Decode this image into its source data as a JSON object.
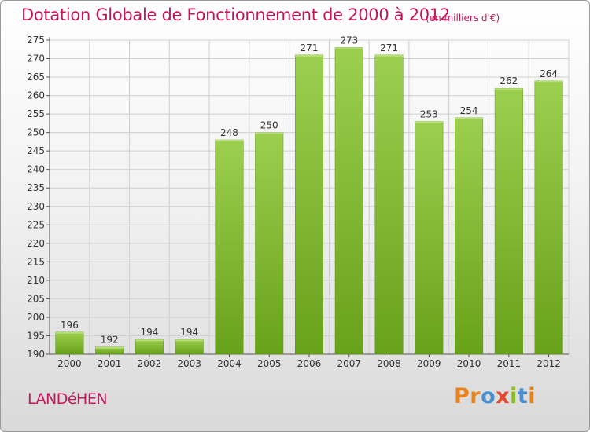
{
  "header": {
    "title": "Dotation Globale de Fonctionnement de 2000 à 2012",
    "subtitle": "(en milliers d'€)"
  },
  "footer": {
    "town": "LANDéHEN",
    "brand": "Proxiti"
  },
  "colors": {
    "title": "#c2185b",
    "bar_top": "#9ccf4f",
    "bar_bottom": "#68a11a",
    "brand_letters": [
      "#e8821e",
      "#e8821e",
      "#4a8fd0",
      "#e34a2f",
      "#8bbb22",
      "#4a8fd0",
      "#e8821e"
    ]
  },
  "chart_data": {
    "type": "bar",
    "categories": [
      "2000",
      "2001",
      "2002",
      "2003",
      "2004",
      "2005",
      "2006",
      "2007",
      "2008",
      "2009",
      "2010",
      "2011",
      "2012"
    ],
    "values": [
      196,
      192,
      194,
      194,
      248,
      250,
      271,
      273,
      271,
      253,
      254,
      262,
      264
    ],
    "data_labels": [
      "196",
      "192",
      "194",
      "194",
      "248",
      "250",
      "271",
      "273",
      "271",
      "253",
      "254",
      "262",
      "264"
    ],
    "title": "Dotation Globale de Fonctionnement de 2000 à 2012",
    "subtitle": "(en milliers d'€)",
    "ylim": [
      190,
      275
    ],
    "yticks": [
      190,
      195,
      200,
      205,
      210,
      215,
      220,
      225,
      230,
      235,
      240,
      245,
      250,
      255,
      260,
      265,
      270,
      275
    ],
    "grid": true
  }
}
